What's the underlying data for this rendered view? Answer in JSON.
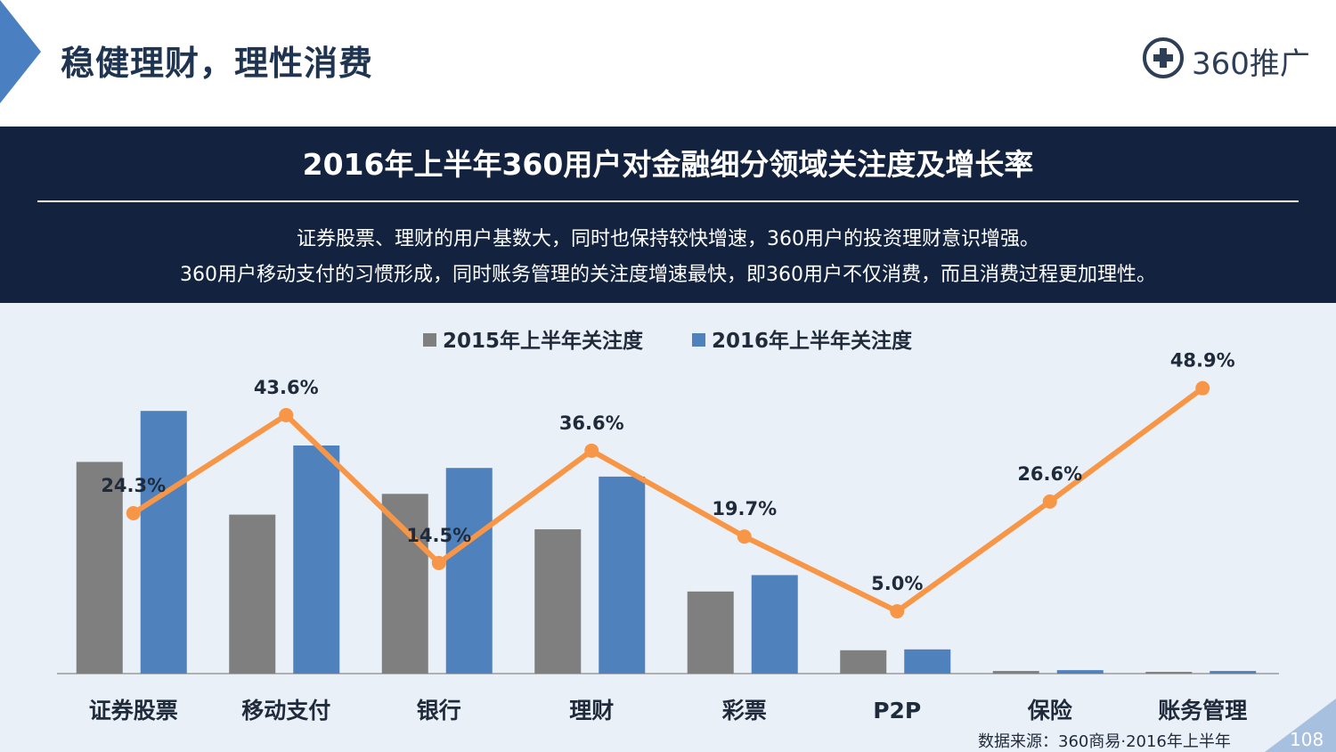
{
  "page_title": "稳健理财，理性消费",
  "logo": {
    "text": "360推广"
  },
  "header": {
    "title": "2016年上半年360用户对金融细分领域关注度及增长率",
    "desc_line1": "证券股票、理财的用户基数大，同时也保持较快增速，360用户的投资理财意识增强。",
    "desc_line2": "360用户移动支付的习惯形成，同时账务管理的关注度增速最快，即360用户不仅消费，而且消费过程更加理性。"
  },
  "footer": {
    "source": "数据来源：360商易·2016年上半年",
    "page_number": "108"
  },
  "colors": {
    "series_2015": "#7f7f7f",
    "series_2016": "#4f81bd",
    "growth_line": "#f79646",
    "band": "#13233f",
    "chart_bg": "#eaf0f8"
  },
  "chart_data": {
    "type": "bar",
    "title": "2016年上半年360用户对金融细分领域关注度及增长率",
    "categories": [
      "证券股票",
      "移动支付",
      "银行",
      "理财",
      "彩票",
      "P2P",
      "保险",
      "账务管理"
    ],
    "series": [
      {
        "name": "2015年上半年关注度",
        "values": [
          245,
          184,
          208,
          167,
          95,
          27,
          3,
          2
        ]
      },
      {
        "name": "2016年上半年关注度",
        "values": [
          304,
          264,
          238,
          228,
          114,
          28,
          4,
          3
        ]
      }
    ],
    "growth_line": {
      "name": "增长率",
      "values": [
        24.3,
        43.6,
        14.5,
        36.6,
        19.7,
        5.0,
        26.6,
        48.9
      ],
      "labels": [
        "24.3%",
        "43.6%",
        "14.5%",
        "36.6%",
        "19.7%",
        "5.0%",
        "26.6%",
        "48.9%"
      ]
    },
    "legend_position": "top-center",
    "bar_ylim": [
      0,
      330
    ],
    "line_ylim": [
      -2,
      52
    ]
  }
}
